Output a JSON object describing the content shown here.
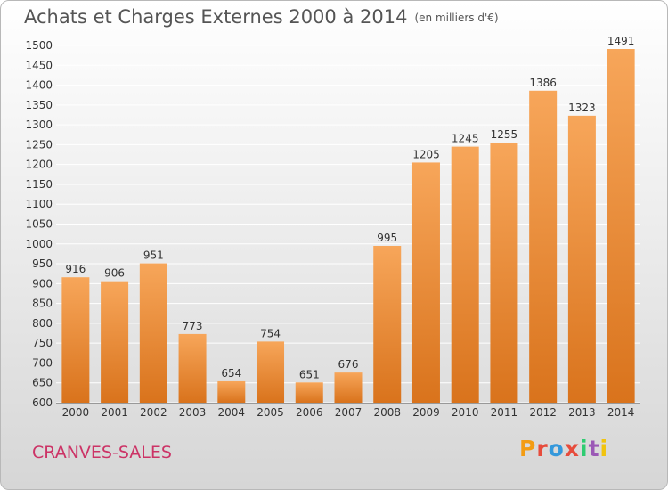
{
  "header": {
    "title": "Achats et Charges Externes 2000 à 2014",
    "unit": "(en milliers d'€)"
  },
  "footer": {
    "city": "CRANVES-SALES",
    "logo": {
      "letters": [
        "P",
        "r",
        "o",
        "x",
        "i",
        "t",
        "i"
      ],
      "colors": [
        "#f39c12",
        "#e74c3c",
        "#3498db",
        "#e74c3c",
        "#2ecc71",
        "#9b59b6",
        "#f1c40f"
      ]
    }
  },
  "colors": {
    "bar_light": "#f7a65a",
    "bar_dark": "#d9731c",
    "grid": "#ffffff",
    "city": "#cc3366"
  },
  "chart_data": {
    "type": "bar",
    "title": "Achats et Charges Externes 2000 à 2014",
    "subtitle": "(en milliers d'€)",
    "categories": [
      "2000",
      "2001",
      "2002",
      "2003",
      "2004",
      "2005",
      "2006",
      "2007",
      "2008",
      "2009",
      "2010",
      "2011",
      "2012",
      "2013",
      "2014"
    ],
    "values": [
      916,
      906,
      951,
      773,
      654,
      754,
      651,
      676,
      995,
      1205,
      1245,
      1255,
      1386,
      1323,
      1491
    ],
    "ylim": [
      600,
      1500
    ],
    "yticks": [
      600,
      650,
      700,
      750,
      800,
      850,
      900,
      950,
      1000,
      1050,
      1100,
      1150,
      1200,
      1250,
      1300,
      1350,
      1400,
      1450,
      1500
    ],
    "grid": true,
    "xlabel": "",
    "ylabel": ""
  }
}
